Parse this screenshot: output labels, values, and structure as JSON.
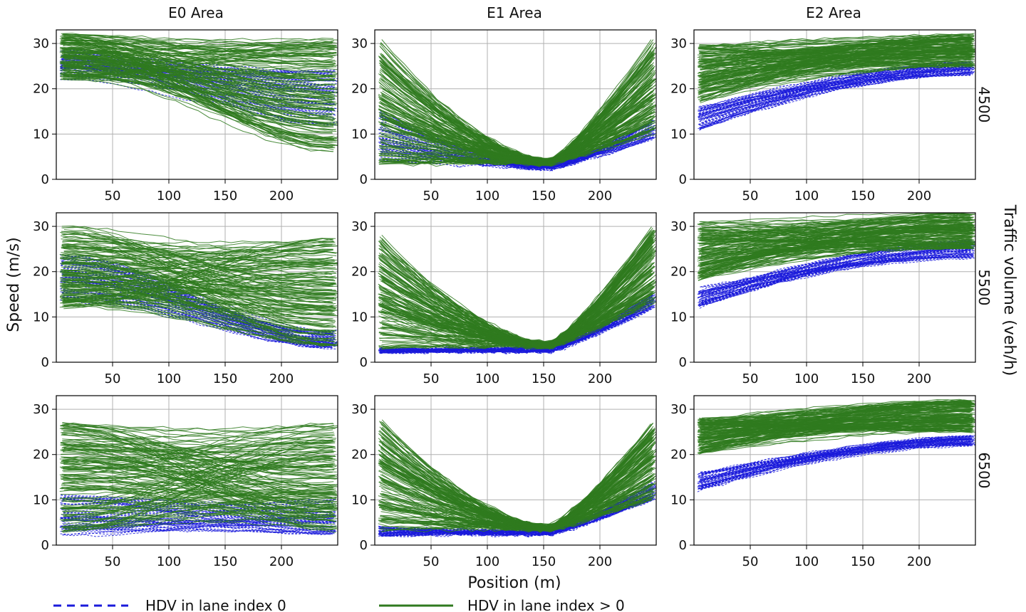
{
  "chart_data": {
    "type": "line",
    "layout": "3x3 small multiples (rows: traffic volume, columns: area)",
    "columns": [
      "E0 Area",
      "E1 Area",
      "E2 Area"
    ],
    "rows": [
      "4500",
      "5500",
      "6500"
    ],
    "row_axis_label": "Traffic volume (veh/h)",
    "xlabel": "Position (m)",
    "ylabel": "Speed (m/s)",
    "xlim": [
      0,
      250
    ],
    "ylim": [
      0,
      33
    ],
    "xticks": [
      50,
      100,
      150,
      200
    ],
    "yticks": [
      0,
      10,
      20,
      30
    ],
    "x_tick_labels": [
      "50",
      "100",
      "150",
      "200"
    ],
    "y_tick_labels": [
      "0",
      "10",
      "20",
      "30"
    ],
    "grid": true,
    "legend_position": "bottom",
    "series": [
      {
        "name": "HDV in lane index 0",
        "style": "dashed",
        "color": "#1a1adb"
      },
      {
        "name": "HDV in lane index > 0",
        "style": "solid",
        "color": "#2f7a1f"
      }
    ],
    "panels": [
      {
        "row": "4500",
        "column": "E0 Area",
        "lane0_speed_start": [
          22,
          29
        ],
        "lane0_speed_end": [
          12,
          24
        ],
        "lane_gt0_speed_start": [
          22,
          32
        ],
        "lane_gt0_speed_end": [
          6,
          31
        ]
      },
      {
        "row": "4500",
        "column": "E1 Area",
        "lane0_speed_start": [
          4,
          15
        ],
        "lane0_min_speed_near_150m": 2,
        "lane0_speed_end": [
          9,
          13
        ],
        "lane_gt0_speed_start": [
          3,
          31
        ],
        "lane_gt0_speed_end": [
          10,
          31
        ]
      },
      {
        "row": "4500",
        "column": "E2 Area",
        "lane0_speed_start": [
          11,
          16
        ],
        "lane0_speed_end": [
          23,
          26
        ],
        "lane_gt0_speed_start": [
          17,
          30
        ],
        "lane_gt0_speed_end": [
          25,
          32
        ]
      },
      {
        "row": "5500",
        "column": "E0 Area",
        "lane0_speed_start": [
          13,
          24
        ],
        "lane0_speed_end": [
          3,
          7
        ],
        "lane_gt0_speed_start": [
          12,
          30
        ],
        "lane_gt0_speed_end": [
          3,
          28
        ]
      },
      {
        "row": "5500",
        "column": "E1 Area",
        "lane0_speed_start": [
          2,
          3
        ],
        "lane0_min_speed_near_150m": 2,
        "lane0_speed_end": [
          12,
          15
        ],
        "lane_gt0_speed_start": [
          3,
          28
        ],
        "lane_gt0_speed_end": [
          13,
          30
        ]
      },
      {
        "row": "5500",
        "column": "E2 Area",
        "lane0_speed_start": [
          12,
          17
        ],
        "lane0_speed_end": [
          23,
          27
        ],
        "lane_gt0_speed_start": [
          18,
          31
        ],
        "lane_gt0_speed_end": [
          25,
          33
        ]
      },
      {
        "row": "6500",
        "column": "E0 Area",
        "lane0_speed_start": [
          2,
          11
        ],
        "lane0_speed_end": [
          2,
          10
        ],
        "lane_gt0_speed_start": [
          3,
          27
        ],
        "lane_gt0_speed_end": [
          3,
          27
        ]
      },
      {
        "row": "6500",
        "column": "E1 Area",
        "lane0_speed_start": [
          2,
          4
        ],
        "lane0_min_speed_near_150m": 2,
        "lane0_speed_end": [
          10,
          14
        ],
        "lane_gt0_speed_start": [
          3,
          28
        ],
        "lane_gt0_speed_end": [
          10,
          27
        ]
      },
      {
        "row": "6500",
        "column": "E2 Area",
        "lane0_speed_start": [
          12,
          16
        ],
        "lane0_speed_end": [
          22,
          24
        ],
        "lane_gt0_speed_start": [
          20,
          28
        ],
        "lane_gt0_speed_end": [
          25,
          32
        ]
      }
    ]
  }
}
